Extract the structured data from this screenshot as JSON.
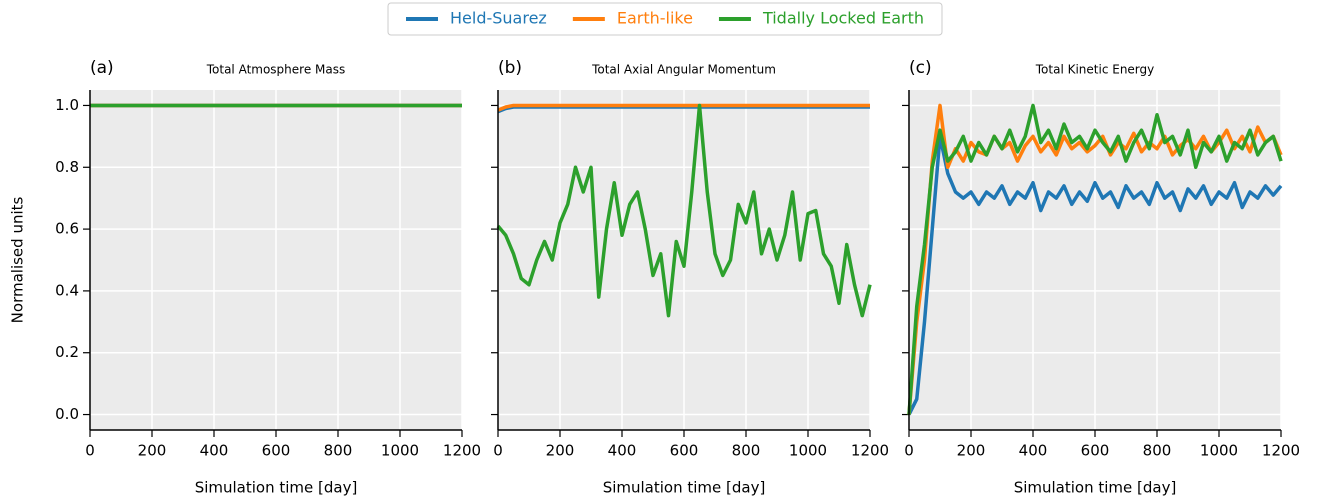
{
  "chart_data": [
    {
      "type": "line",
      "label": "(a)",
      "title": "Total Atmosphere Mass",
      "xlabel": "Simulation time [day]",
      "ylabel": "Normalised units",
      "x": [
        0,
        1200
      ],
      "series": [
        {
          "name": "Held-Suarez",
          "color": "#1f77b4",
          "values": [
            1,
            1
          ]
        },
        {
          "name": "Earth-like",
          "color": "#ff7f0e",
          "values": [
            1,
            1
          ]
        },
        {
          "name": "Tidally Locked Earth",
          "color": "#2ca02c",
          "values": [
            1,
            1
          ]
        }
      ],
      "xlim": [
        0,
        1200
      ],
      "xticks": [
        0,
        200,
        400,
        600,
        800,
        1000,
        1200
      ],
      "ylim": [
        -0.05,
        1.05
      ],
      "yticks": [
        {
          "value": 0,
          "label": "0.0"
        },
        {
          "value": 0.2,
          "label": "0.2"
        },
        {
          "value": 0.4,
          "label": "0.4"
        },
        {
          "value": 0.6,
          "label": "0.6"
        },
        {
          "value": 0.8,
          "label": "0.8"
        },
        {
          "value": 1,
          "label": "1.0"
        }
      ],
      "grid": true,
      "legend": "upper center"
    },
    {
      "type": "line",
      "label": "(b)",
      "title": "Total Axial Angular Momentum",
      "xlabel": "Simulation time [day]",
      "x": [
        0,
        25,
        50,
        75,
        100,
        125,
        150,
        175,
        200,
        225,
        250,
        275,
        300,
        325,
        350,
        375,
        400,
        425,
        450,
        475,
        500,
        525,
        550,
        575,
        600,
        625,
        650,
        675,
        700,
        725,
        750,
        775,
        800,
        825,
        850,
        875,
        900,
        925,
        950,
        975,
        1000,
        1025,
        1050,
        1075,
        1100,
        1125,
        1150,
        1175,
        1200
      ],
      "series": [
        {
          "color": "#1f77b4",
          "values": [
            0.98,
            0.99,
            0.995,
            0.995,
            0.995,
            0.995,
            0.995,
            0.995,
            0.995,
            0.995,
            0.995,
            0.995,
            0.995,
            0.995,
            0.995,
            0.995,
            0.995,
            0.995,
            0.995,
            0.995,
            0.995,
            0.995,
            0.995,
            0.995,
            0.995,
            0.995,
            0.995,
            0.995,
            0.995,
            0.995,
            0.995,
            0.995,
            0.995,
            0.995,
            0.995,
            0.995,
            0.995,
            0.995,
            0.995,
            0.995,
            0.995,
            0.995,
            0.995,
            0.995,
            0.995,
            0.995,
            0.995,
            0.995,
            0.995
          ]
        },
        {
          "color": "#ff7f0e",
          "values": [
            0.985,
            0.995,
            1,
            1,
            1,
            1,
            1,
            1,
            1,
            1,
            1,
            1,
            1,
            1,
            1,
            1,
            1,
            1,
            1,
            1,
            1,
            1,
            1,
            1,
            1,
            1,
            1,
            1,
            1,
            1,
            1,
            1,
            1,
            1,
            1,
            1,
            1,
            1,
            1,
            1,
            1,
            1,
            1,
            1,
            1,
            1,
            1,
            1,
            1
          ]
        },
        {
          "color": "#2ca02c",
          "values": [
            0.61,
            0.58,
            0.52,
            0.44,
            0.42,
            0.5,
            0.56,
            0.5,
            0.62,
            0.68,
            0.8,
            0.72,
            0.8,
            0.38,
            0.6,
            0.75,
            0.58,
            0.68,
            0.72,
            0.6,
            0.45,
            0.52,
            0.32,
            0.56,
            0.48,
            0.72,
            1.0,
            0.72,
            0.52,
            0.45,
            0.5,
            0.68,
            0.62,
            0.72,
            0.52,
            0.6,
            0.5,
            0.58,
            0.72,
            0.5,
            0.65,
            0.66,
            0.52,
            0.48,
            0.36,
            0.55,
            0.42,
            0.32,
            0.42
          ]
        }
      ],
      "xlim": [
        0,
        1200
      ],
      "xticks": [
        0,
        200,
        400,
        600,
        800,
        1000,
        1200
      ],
      "ylim": [
        -0.05,
        1.05
      ],
      "yticks": [
        0,
        0.2,
        0.4,
        0.6,
        0.8,
        1
      ],
      "grid": true
    },
    {
      "type": "line",
      "label": "(c)",
      "title": "Total Kinetic Energy",
      "xlabel": "Simulation time [day]",
      "x": [
        0,
        25,
        50,
        75,
        100,
        125,
        150,
        175,
        200,
        225,
        250,
        275,
        300,
        325,
        350,
        375,
        400,
        425,
        450,
        475,
        500,
        525,
        550,
        575,
        600,
        625,
        650,
        675,
        700,
        725,
        750,
        775,
        800,
        825,
        850,
        875,
        900,
        925,
        950,
        975,
        1000,
        1025,
        1050,
        1075,
        1100,
        1125,
        1150,
        1175,
        1200
      ],
      "series": [
        {
          "color": "#1f77b4",
          "values": [
            0,
            0.05,
            0.3,
            0.6,
            0.9,
            0.78,
            0.72,
            0.7,
            0.72,
            0.68,
            0.72,
            0.7,
            0.74,
            0.68,
            0.72,
            0.7,
            0.75,
            0.66,
            0.72,
            0.7,
            0.74,
            0.68,
            0.72,
            0.69,
            0.75,
            0.7,
            0.72,
            0.67,
            0.74,
            0.7,
            0.72,
            0.68,
            0.75,
            0.7,
            0.72,
            0.66,
            0.73,
            0.7,
            0.74,
            0.68,
            0.72,
            0.7,
            0.75,
            0.67,
            0.72,
            0.7,
            0.74,
            0.71,
            0.74
          ]
        },
        {
          "color": "#ff7f0e",
          "values": [
            0,
            0.3,
            0.5,
            0.82,
            1.0,
            0.8,
            0.86,
            0.82,
            0.88,
            0.85,
            0.84,
            0.9,
            0.86,
            0.88,
            0.82,
            0.87,
            0.9,
            0.85,
            0.88,
            0.84,
            0.9,
            0.86,
            0.88,
            0.85,
            0.87,
            0.9,
            0.84,
            0.88,
            0.86,
            0.91,
            0.85,
            0.88,
            0.86,
            0.9,
            0.84,
            0.87,
            0.89,
            0.86,
            0.9,
            0.85,
            0.88,
            0.92,
            0.86,
            0.9,
            0.85,
            0.93,
            0.88,
            0.9,
            0.84
          ]
        },
        {
          "color": "#2ca02c",
          "values": [
            0,
            0.35,
            0.55,
            0.8,
            0.92,
            0.82,
            0.85,
            0.9,
            0.82,
            0.88,
            0.84,
            0.9,
            0.86,
            0.92,
            0.85,
            0.9,
            1.0,
            0.88,
            0.92,
            0.86,
            0.94,
            0.88,
            0.9,
            0.86,
            0.92,
            0.88,
            0.85,
            0.9,
            0.82,
            0.88,
            0.92,
            0.86,
            0.97,
            0.88,
            0.9,
            0.84,
            0.92,
            0.8,
            0.88,
            0.85,
            0.9,
            0.82,
            0.88,
            0.86,
            0.92,
            0.84,
            0.88,
            0.9,
            0.82
          ]
        }
      ],
      "xlim": [
        0,
        1200
      ],
      "xticks": [
        0,
        200,
        400,
        600,
        800,
        1000,
        1200
      ],
      "ylim": [
        -0.05,
        1.05
      ],
      "yticks": [
        0,
        0.2,
        0.4,
        0.6,
        0.8,
        1
      ],
      "grid": true
    }
  ]
}
